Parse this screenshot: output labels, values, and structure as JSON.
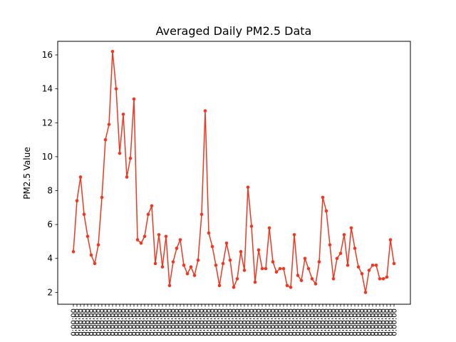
{
  "chart_data": {
    "type": "line",
    "title": "Averaged Daily PM2.5 Data",
    "xlabel": "",
    "ylabel": "PM2.5 Value",
    "ylim": [
      1.3,
      16.8
    ],
    "yticks": [
      2,
      4,
      6,
      8,
      10,
      12,
      14,
      16
    ],
    "x_tick_label": "0:00:00",
    "grid": false,
    "colors": {
      "line": "#ee3822",
      "marker": "#ee3822",
      "axes": "#000000",
      "background": "#ffffff"
    },
    "series": [
      {
        "name": "PM2.5",
        "values": [
          4.4,
          7.4,
          8.8,
          6.6,
          5.3,
          4.2,
          3.7,
          4.8,
          7.6,
          11.0,
          11.9,
          16.2,
          14.0,
          10.2,
          12.5,
          8.8,
          9.9,
          13.4,
          5.1,
          4.9,
          5.3,
          6.6,
          7.1,
          3.7,
          5.4,
          3.5,
          5.3,
          2.4,
          3.8,
          4.6,
          5.1,
          3.6,
          3.1,
          3.5,
          3.0,
          3.9,
          6.6,
          12.7,
          5.5,
          4.7,
          3.6,
          2.4,
          3.7,
          4.9,
          3.9,
          2.3,
          2.8,
          4.4,
          3.3,
          8.2,
          5.9,
          2.6,
          4.5,
          3.4,
          3.4,
          5.8,
          3.8,
          3.2,
          3.4,
          3.4,
          2.4,
          2.3,
          5.4,
          3.0,
          2.7,
          4.0,
          3.4,
          2.8,
          2.5,
          3.8,
          7.6,
          6.8,
          4.8,
          2.8,
          4.0,
          4.3,
          5.4,
          3.6,
          5.8,
          4.6,
          3.5,
          3.1,
          2.0,
          3.3,
          3.6,
          3.6,
          2.8,
          2.8,
          2.9,
          5.1,
          3.7
        ]
      }
    ]
  }
}
